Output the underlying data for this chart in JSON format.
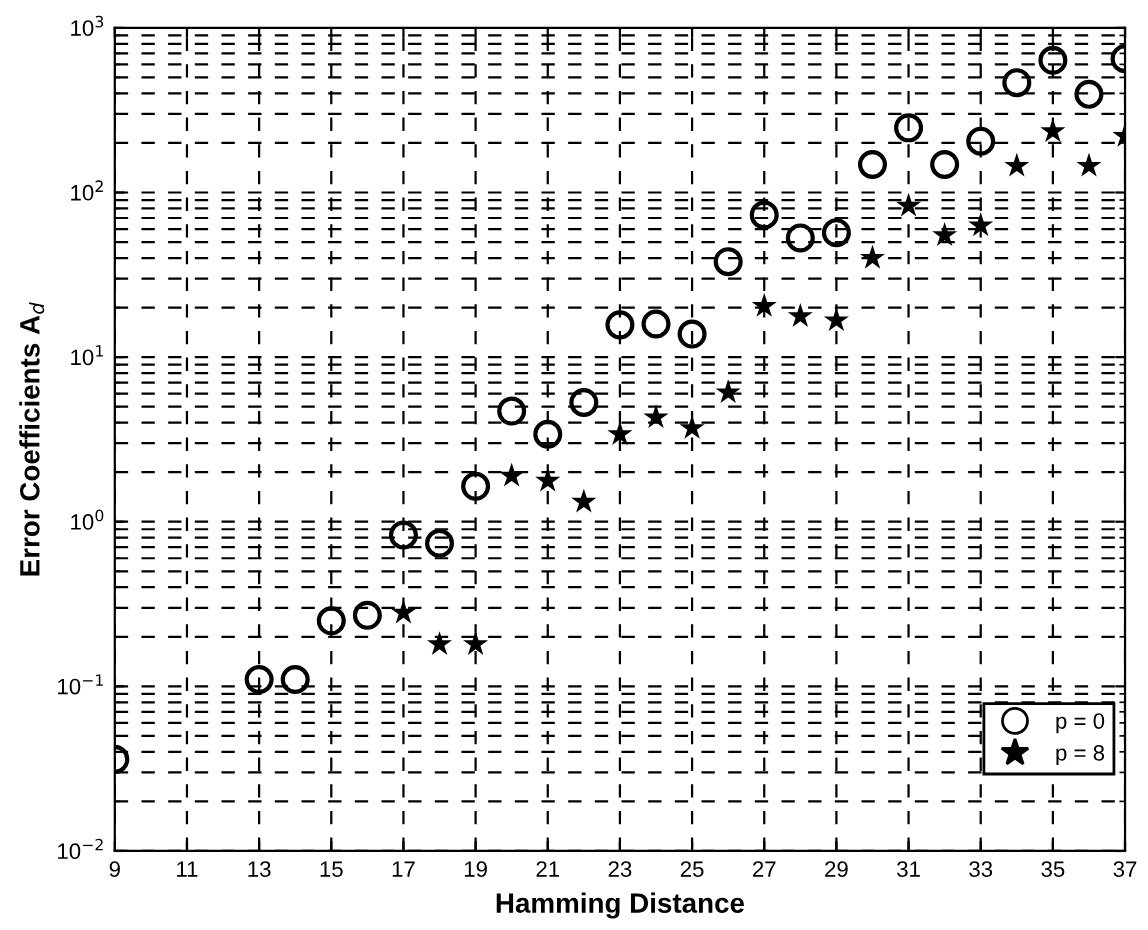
{
  "chart_data": {
    "type": "scatter",
    "xlabel": "Hamming Distance",
    "ylabel": "Error Coefficients A$_{d}$",
    "log": "y",
    "grid": true,
    "legend": "bottom right",
    "xlim": [
      9,
      37
    ],
    "xticks": [
      9,
      11,
      13,
      15,
      17,
      19,
      21,
      23,
      25,
      27,
      29,
      31,
      33,
      35,
      37
    ],
    "ylim": [
      0.01,
      1000
    ],
    "yticks": [
      {
        "value": 0.01,
        "label": "10$^{−2}$"
      },
      {
        "value": 0.1,
        "label": "10$^{−1}$"
      },
      {
        "value": 1,
        "label": "10$^{0}$"
      },
      {
        "value": 10,
        "label": "10$^{1}$"
      },
      {
        "value": 100,
        "label": "10$^{2}$"
      },
      {
        "value": 1000,
        "label": "10$^{3}$"
      }
    ],
    "series": [
      {
        "name": "p = 0",
        "color": "#000000",
        "marker": "circle",
        "x": [
          9,
          13,
          14,
          15,
          16,
          17,
          18,
          19,
          20,
          21,
          22,
          23,
          24,
          25,
          26,
          27,
          28,
          29,
          30,
          31,
          32,
          33,
          34,
          35,
          36,
          37
        ],
        "values": [
          0.036,
          0.11,
          0.11,
          0.25,
          0.27,
          0.83,
          0.74,
          1.64,
          4.7,
          3.4,
          5.3,
          15.7,
          15.9,
          13.8,
          38,
          73,
          53,
          57,
          148,
          247,
          148,
          205,
          465,
          635,
          395,
          650
        ]
      },
      {
        "name": "p = 8",
        "color": "#000000",
        "marker": "star",
        "x": [
          17,
          18,
          19,
          20,
          21,
          22,
          23,
          24,
          25,
          26,
          27,
          28,
          29,
          30,
          31,
          32,
          33,
          34,
          35,
          36,
          37
        ],
        "values": [
          0.28,
          0.18,
          0.18,
          1.9,
          1.77,
          1.32,
          3.4,
          4.3,
          3.7,
          6.1,
          20.4,
          17.7,
          16.7,
          40,
          83,
          55,
          63,
          145,
          235,
          145,
          220
        ]
      }
    ]
  }
}
